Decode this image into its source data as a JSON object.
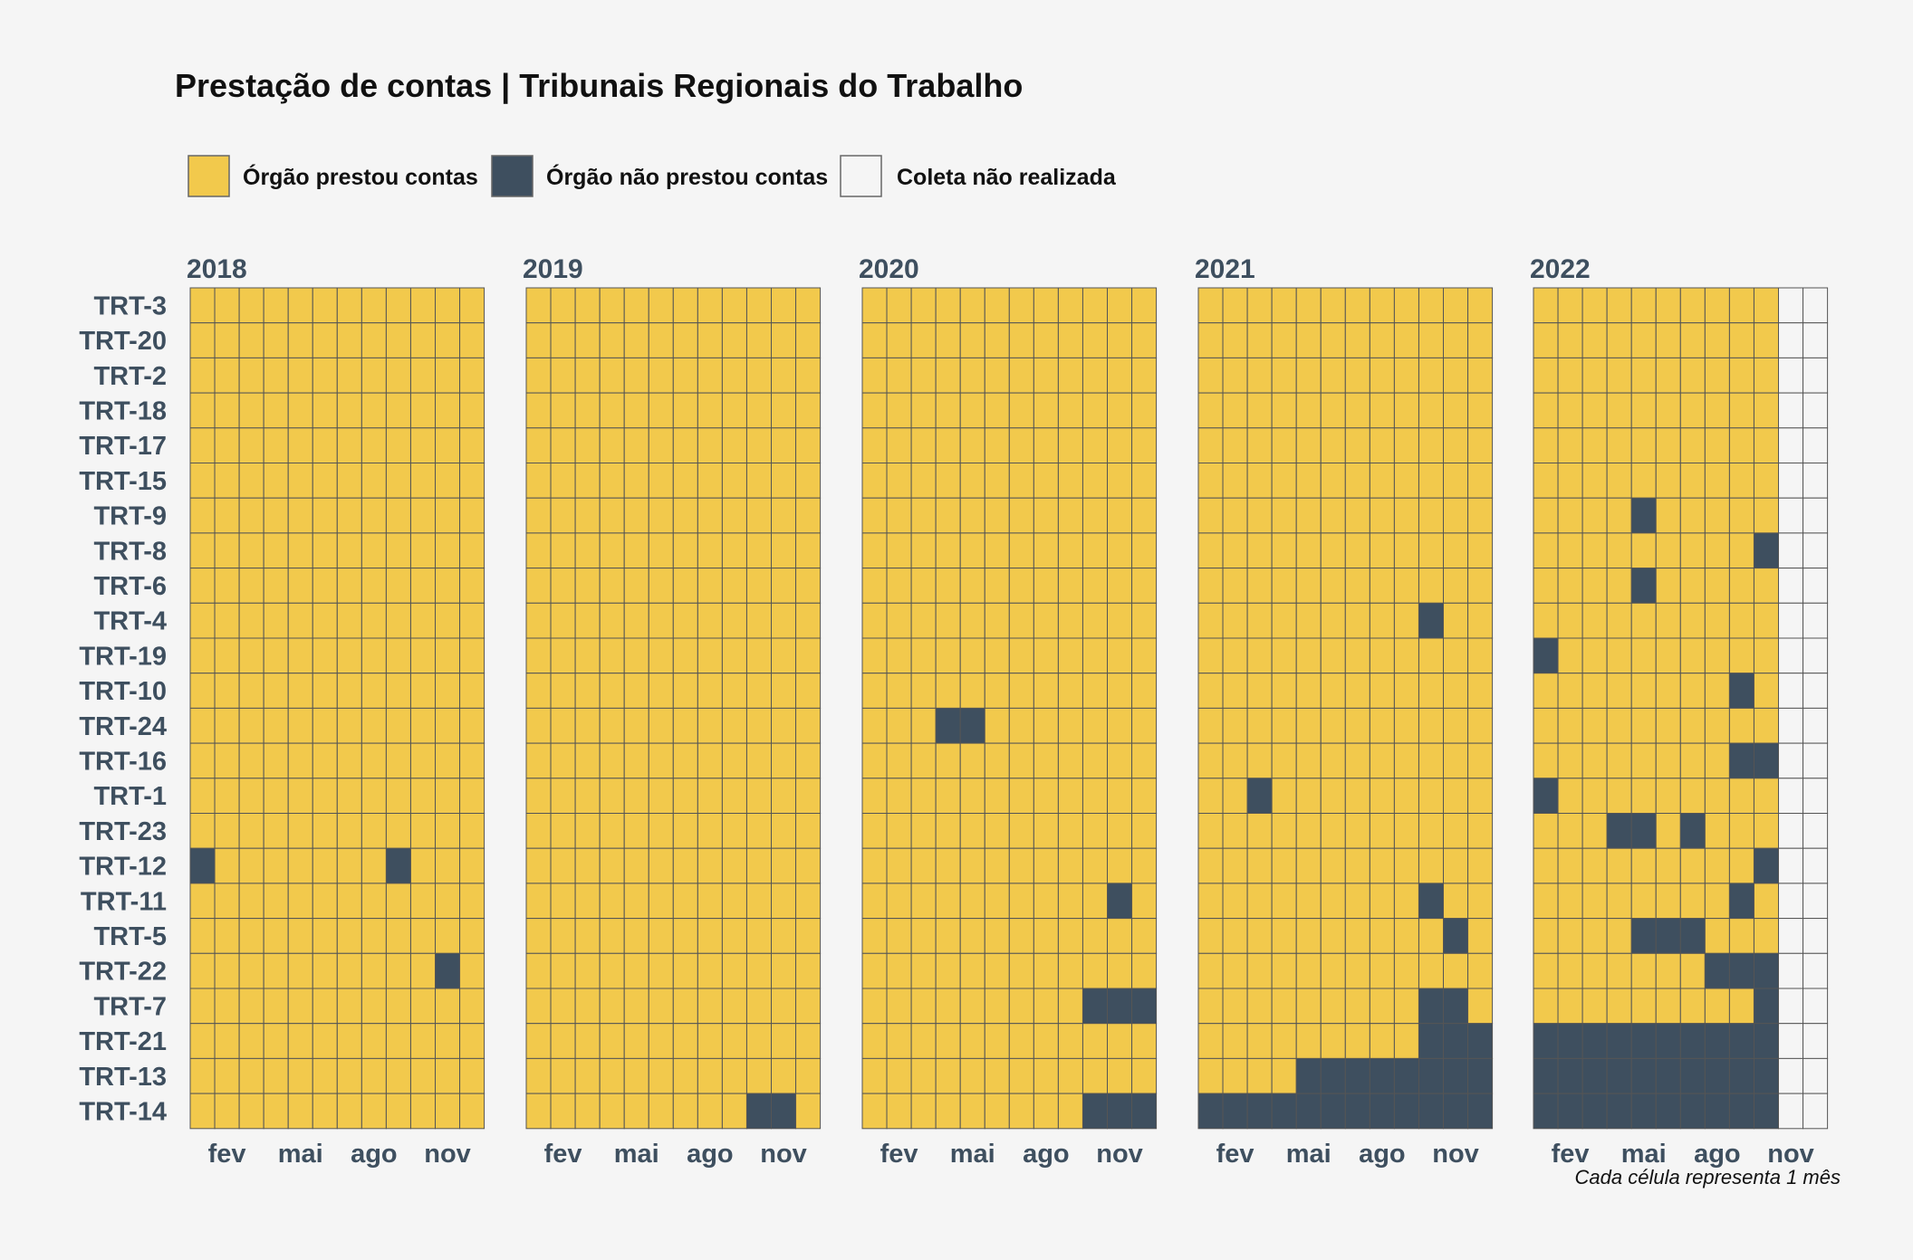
{
  "chart_data": {
    "type": "heatmap",
    "title": "Prestação de contas | Tribunais Regionais do Trabalho",
    "caption": "Cada célula representa 1 mês",
    "legend": [
      {
        "key": "P",
        "label": "Órgão prestou contas",
        "color": "#f2c94c"
      },
      {
        "key": "N",
        "label": "Órgão não prestou contas",
        "color": "#3e4f5f"
      },
      {
        "key": "W",
        "label": "Coleta não realizada",
        "color": "#f5f5f5"
      }
    ],
    "legend_position": "top-left",
    "colors": {
      "grid_line": "#555555",
      "label_text": "#3e4f5f",
      "background": "#f5f5f5"
    },
    "months_per_year": 12,
    "month_ticks": [
      {
        "month": 2,
        "label": "fev"
      },
      {
        "month": 5,
        "label": "mai"
      },
      {
        "month": 8,
        "label": "ago"
      },
      {
        "month": 11,
        "label": "nov"
      }
    ],
    "rows": [
      "TRT-3",
      "TRT-20",
      "TRT-2",
      "TRT-18",
      "TRT-17",
      "TRT-15",
      "TRT-9",
      "TRT-8",
      "TRT-6",
      "TRT-4",
      "TRT-19",
      "TRT-10",
      "TRT-24",
      "TRT-16",
      "TRT-1",
      "TRT-23",
      "TRT-12",
      "TRT-11",
      "TRT-5",
      "TRT-22",
      "TRT-7",
      "TRT-21",
      "TRT-13",
      "TRT-14"
    ],
    "years": [
      {
        "year": "2018",
        "rows": [
          "PPPPPPPPPPPP",
          "PPPPPPPPPPPP",
          "PPPPPPPPPPPP",
          "PPPPPPPPPPPP",
          "PPPPPPPPPPPP",
          "PPPPPPPPPPPP",
          "PPPPPPPPPPPP",
          "PPPPPPPPPPPP",
          "PPPPPPPPPPPP",
          "PPPPPPPPPPPP",
          "PPPPPPPPPPPP",
          "PPPPPPPPPPPP",
          "PPPPPPPPPPPP",
          "PPPPPPPPPPPP",
          "PPPPPPPPPPPP",
          "PPPPPPPPPPPP",
          "NPPPPPPPNPPP",
          "PPPPPPPPPPPP",
          "PPPPPPPPPPPP",
          "PPPPPPPPPPNP",
          "PPPPPPPPPPPP",
          "PPPPPPPPPPPP",
          "PPPPPPPPPPPP",
          "PPPPPPPPPPPP"
        ]
      },
      {
        "year": "2019",
        "rows": [
          "PPPPPPPPPPPP",
          "PPPPPPPPPPPP",
          "PPPPPPPPPPPP",
          "PPPPPPPPPPPP",
          "PPPPPPPPPPPP",
          "PPPPPPPPPPPP",
          "PPPPPPPPPPPP",
          "PPPPPPPPPPPP",
          "PPPPPPPPPPPP",
          "PPPPPPPPPPPP",
          "PPPPPPPPPPPP",
          "PPPPPPPPPPPP",
          "PPPPPPPPPPPP",
          "PPPPPPPPPPPP",
          "PPPPPPPPPPPP",
          "PPPPPPPPPPPP",
          "PPPPPPPPPPPP",
          "PPPPPPPPPPPP",
          "PPPPPPPPPPPP",
          "PPPPPPPPPPPP",
          "PPPPPPPPPPPP",
          "PPPPPPPPPPPP",
          "PPPPPPPPPPPP",
          "PPPPPPPPPNNP"
        ]
      },
      {
        "year": "2020",
        "rows": [
          "PPPPPPPPPPPP",
          "PPPPPPPPPPPP",
          "PPPPPPPPPPPP",
          "PPPPPPPPPPPP",
          "PPPPPPPPPPPP",
          "PPPPPPPPPPPP",
          "PPPPPPPPPPPP",
          "PPPPPPPPPPPP",
          "PPPPPPPPPPPP",
          "PPPPPPPPPPPP",
          "PPPPPPPPPPPP",
          "PPPPPPPPPPPP",
          "PPPNNPPPPPPP",
          "PPPPPPPPPPPP",
          "PPPPPPPPPPPP",
          "PPPPPPPPPPPP",
          "PPPPPPPPPPPP",
          "PPPPPPPPPPNP",
          "PPPPPPPPPPPP",
          "PPPPPPPPPPPP",
          "PPPPPPPPPNNN",
          "PPPPPPPPPPPP",
          "PPPPPPPPPPPP",
          "PPPPPPPPPNNN"
        ]
      },
      {
        "year": "2021",
        "rows": [
          "PPPPPPPPPPPP",
          "PPPPPPPPPPPP",
          "PPPPPPPPPPPP",
          "PPPPPPPPPPPP",
          "PPPPPPPPPPPP",
          "PPPPPPPPPPPP",
          "PPPPPPPPPPPP",
          "PPPPPPPPPPPP",
          "PPPPPPPPPPPP",
          "PPPPPPPPPNPP",
          "PPPPPPPPPPPP",
          "PPPPPPPPPPPP",
          "PPPPPPPPPPPP",
          "PPPPPPPPPPPP",
          "PPNPPPPPPPPP",
          "PPPPPPPPPPPP",
          "PPPPPPPPPPPP",
          "PPPPPPPPPNPP",
          "PPPPPPPPPPNP",
          "PPPPPPPPPPPP",
          "PPPPPPPPPNNP",
          "PPPPPPPPPNNN",
          "PPPPNNNNNNNN",
          "NNNNNNNNNNNN"
        ]
      },
      {
        "year": "2022",
        "rows": [
          "PPPPPPPPPPWW",
          "PPPPPPPPPPWW",
          "PPPPPPPPPPWW",
          "PPPPPPPPPPWW",
          "PPPPPPPPPPWW",
          "PPPPPPPPPPWW",
          "PPPPNPPPPPWW",
          "PPPPPPPPPNWW",
          "PPPPNPPPPPWW",
          "PPPPPPPPPPWW",
          "NPPPPPPPPPWW",
          "PPPPPPPPNPWW",
          "PPPPPPPPPPWW",
          "PPPPPPPPNNWW",
          "NPPPPPPPPPWW",
          "PPPNNPNPPPWW",
          "PPPPPPPPPNWW",
          "PPPPPPPPNPWW",
          "PPPPNNNPPPWW",
          "PPPPPPPNNNWW",
          "PPPPPPPPPNWW",
          "NNNNNNNNNNWW",
          "NNNNNNNNNNWW",
          "NNNNNNNNNNWW"
        ]
      }
    ]
  }
}
